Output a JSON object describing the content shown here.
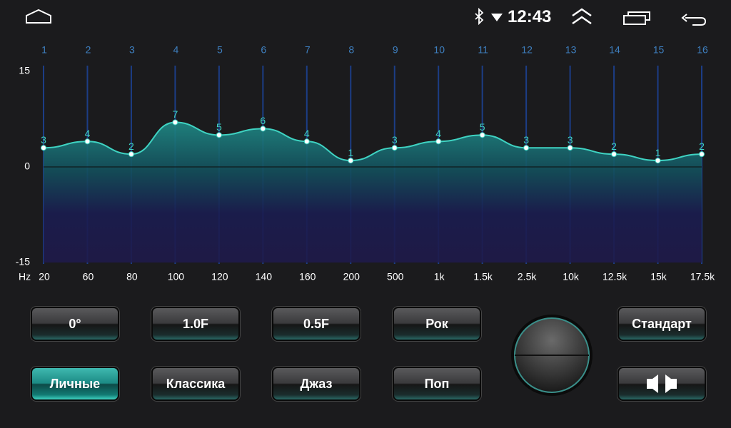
{
  "status_bar": {
    "time": "12:43"
  },
  "chart_data": {
    "type": "area",
    "band_numbers": [
      1,
      2,
      3,
      4,
      5,
      6,
      7,
      8,
      9,
      10,
      11,
      12,
      13,
      14,
      15,
      16
    ],
    "x_label": "Hz",
    "categories": [
      "20",
      "60",
      "80",
      "100",
      "120",
      "140",
      "160",
      "200",
      "500",
      "1k",
      "1.5k",
      "2.5k",
      "10k",
      "12.5k",
      "15k",
      "17.5k"
    ],
    "values": [
      3,
      4,
      2,
      7,
      5,
      6,
      4,
      1,
      3,
      4,
      5,
      3,
      3,
      2,
      1,
      2
    ],
    "ylim": [
      -15,
      15
    ],
    "yticks": [
      -15,
      0,
      15
    ],
    "color": "#3fd3c2"
  },
  "buttons": {
    "row1": [
      "0°",
      "1.0F",
      "0.5F",
      "Рок",
      "Стандарт"
    ],
    "row2": [
      "Личные",
      "Классика",
      "Джаз",
      "Поп"
    ]
  }
}
